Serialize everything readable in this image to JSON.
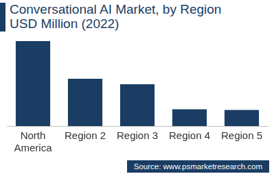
{
  "chart_data": {
    "type": "bar",
    "title": "Conversational AI Market, by Region",
    "subtitle": "USD Million (2022)",
    "categories": [
      "North America",
      "Region 2",
      "Region 3",
      "Region 4",
      "Region 5"
    ],
    "values": [
      126,
      70,
      62,
      25,
      24
    ],
    "color": "#1b3d63",
    "ylim": [
      0,
      126
    ],
    "grid": false,
    "tick_labels": "x",
    "source": "Source: www.psmarketresearch.com"
  }
}
